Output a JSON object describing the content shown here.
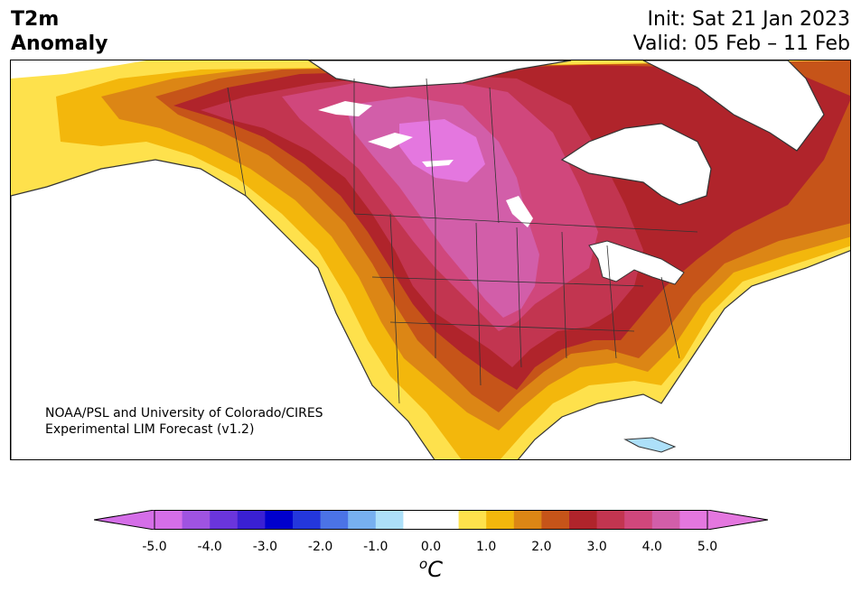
{
  "header": {
    "variable_line1": "T2m",
    "variable_line2": "Anomaly",
    "init_text": "Init: Sat 21 Jan 2023",
    "valid_text": "Valid: 05 Feb – 11 Feb"
  },
  "credit": {
    "line1": "NOAA/PSL and University of Colorado/CIRES",
    "line2": "Experimental LIM Forecast (v1.2)"
  },
  "colorbar": {
    "unit_base": "C",
    "unit_sup": "o",
    "ticks": [
      "-5.0",
      "-4.0",
      "-3.0",
      "-2.0",
      "-1.0",
      "0.0",
      "1.0",
      "2.0",
      "3.0",
      "4.0",
      "5.0"
    ],
    "colors": [
      "#d56ee8",
      "#9f53e1",
      "#6a35dc",
      "#3a20d3",
      "#0000cd",
      "#2437dc",
      "#4b73e6",
      "#77b0f0",
      "#ade0f9",
      "#ffffff",
      "#ffffff",
      "#fee14c",
      "#f3b70c",
      "#dc8615",
      "#c65419",
      "#b0242b",
      "#c23550",
      "#d0477c",
      "#d25ea9",
      "#e477df"
    ],
    "under_color": "#d56ee8",
    "over_color": "#e477df"
  },
  "map": {
    "ocean_color": "#ffffff",
    "lake_color": "#ffffff",
    "border_color": "#333333"
  }
}
